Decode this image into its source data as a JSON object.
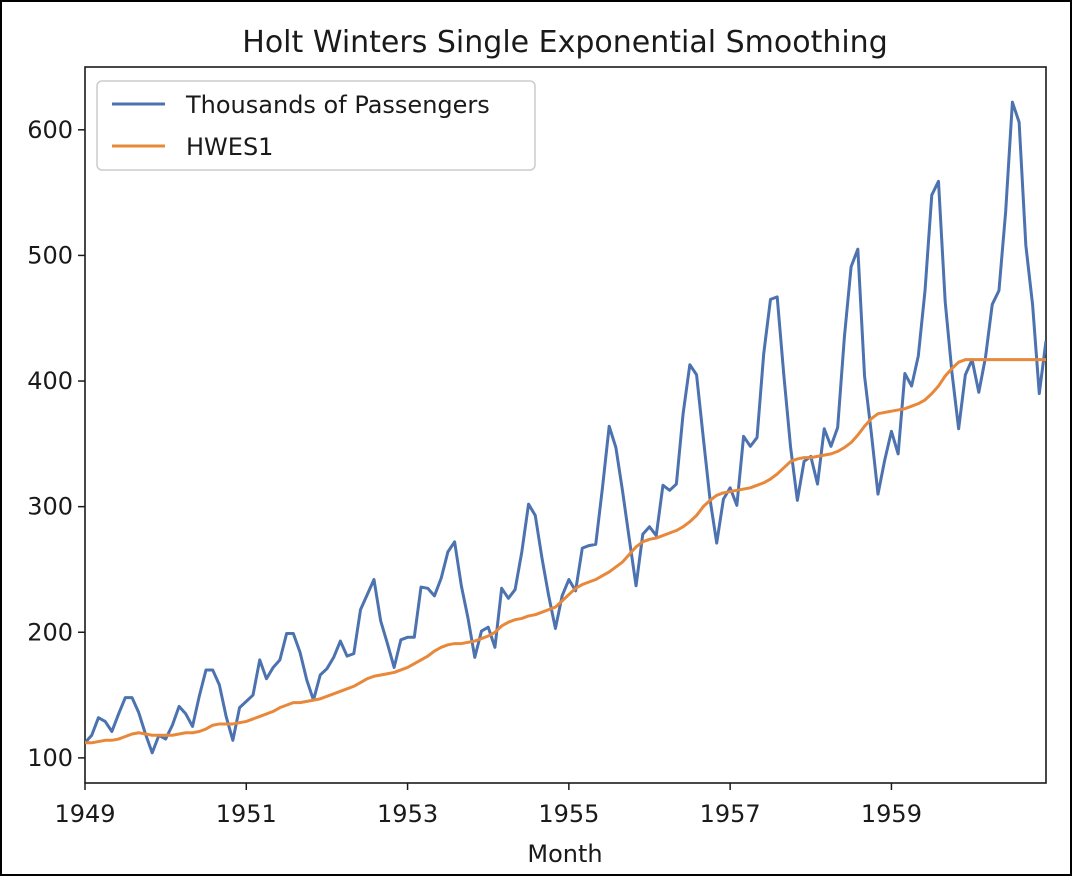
{
  "chart_data": {
    "type": "line",
    "title": "Holt Winters Single Exponential Smoothing",
    "xlabel": "Month",
    "ylabel": "",
    "x_start": "1949-01",
    "x_frequency": "monthly",
    "xlim": [
      "1949-01",
      "1960-12"
    ],
    "ylim": [
      80,
      650
    ],
    "xticks": [
      "1949",
      "1951",
      "1953",
      "1955",
      "1957",
      "1959"
    ],
    "yticks": [
      100,
      200,
      300,
      400,
      500,
      600
    ],
    "grid": false,
    "legend_position": "top-left",
    "series": [
      {
        "name": "Thousands of Passengers",
        "color": "#4c72b0",
        "values": [
          112,
          118,
          132,
          129,
          121,
          135,
          148,
          148,
          136,
          119,
          104,
          118,
          115,
          126,
          141,
          135,
          125,
          149,
          170,
          170,
          158,
          133,
          114,
          140,
          145,
          150,
          178,
          163,
          172,
          178,
          199,
          199,
          184,
          162,
          146,
          166,
          171,
          180,
          193,
          181,
          183,
          218,
          230,
          242,
          209,
          191,
          172,
          194,
          196,
          196,
          236,
          235,
          229,
          243,
          264,
          272,
          237,
          211,
          180,
          201,
          204,
          188,
          235,
          227,
          234,
          264,
          302,
          293,
          259,
          229,
          203,
          229,
          242,
          233,
          267,
          269,
          270,
          315,
          364,
          347,
          312,
          274,
          237,
          278,
          284,
          277,
          317,
          313,
          318,
          374,
          413,
          405,
          355,
          306,
          271,
          306,
          315,
          301,
          356,
          348,
          355,
          422,
          465,
          467,
          404,
          347,
          305,
          336,
          340,
          318,
          362,
          348,
          363,
          435,
          491,
          505,
          404,
          359,
          310,
          337,
          360,
          342,
          406,
          396,
          420,
          472,
          548,
          559,
          463,
          407,
          362,
          405,
          417,
          391,
          419,
          461,
          472,
          535,
          622,
          606,
          508,
          461,
          390,
          432
        ]
      },
      {
        "name": "HWES1",
        "color": "#e8883a",
        "values": [
          112,
          112,
          113,
          114,
          114,
          115,
          117,
          119,
          120,
          119,
          118,
          118,
          118,
          118,
          119,
          120,
          120,
          121,
          123,
          126,
          127,
          127,
          127,
          128,
          129,
          131,
          133,
          135,
          137,
          140,
          142,
          144,
          144,
          145,
          146,
          147,
          149,
          151,
          153,
          155,
          157,
          160,
          163,
          165,
          166,
          167,
          168,
          170,
          172,
          175,
          178,
          181,
          185,
          188,
          190,
          191,
          191,
          192,
          193,
          195,
          197,
          200,
          205,
          208,
          210,
          211,
          213,
          214,
          216,
          218,
          220,
          225,
          230,
          235,
          238,
          240,
          242,
          245,
          248,
          252,
          256,
          262,
          268,
          272,
          274,
          275,
          277,
          279,
          281,
          284,
          288,
          293,
          300,
          305,
          309,
          311,
          312,
          313,
          314,
          315,
          317,
          319,
          322,
          326,
          331,
          336,
          338,
          339,
          339,
          340,
          341,
          342,
          344,
          347,
          351,
          357,
          364,
          370,
          374,
          375,
          376,
          377,
          378,
          380,
          382,
          385,
          390,
          396,
          404,
          410,
          415,
          417,
          417,
          417,
          417,
          417,
          417,
          417,
          417,
          417,
          417,
          417,
          417,
          417
        ]
      }
    ]
  }
}
